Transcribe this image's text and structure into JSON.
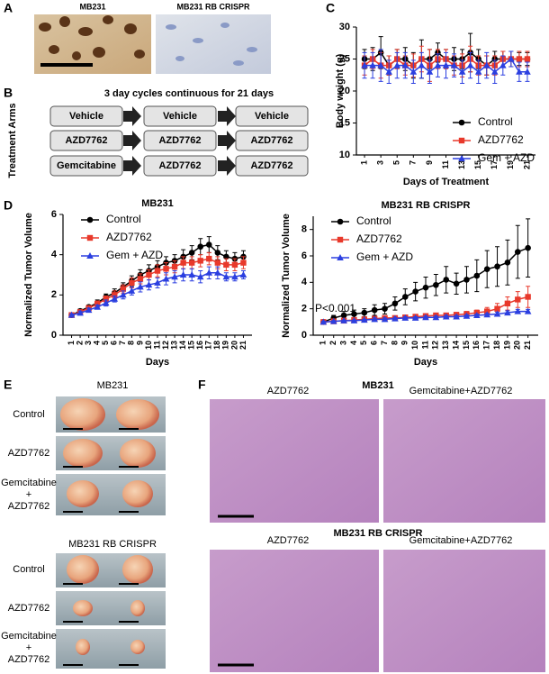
{
  "panel_labels": [
    "A",
    "B",
    "C",
    "D",
    "E",
    "F"
  ],
  "panel_a": {
    "labels": [
      "MB231",
      "MB231 RB CRISPR"
    ]
  },
  "panel_b": {
    "title": "3 day cycles continuous for 21 days",
    "axis_label": "Treatment Arms",
    "rows": [
      [
        "Vehicle",
        "Vehicle",
        "Vehicle"
      ],
      [
        "AZD7762",
        "AZD7762",
        "AZD7762"
      ],
      [
        "Gemcitabine",
        "AZD7762",
        "AZD7762"
      ]
    ]
  },
  "chart_data": [
    {
      "type": "line",
      "xlabel": "Days of Treatment",
      "ylabel": "Body weight (g)",
      "x": [
        1,
        2,
        3,
        4,
        5,
        6,
        7,
        8,
        9,
        10,
        11,
        12,
        13,
        14,
        15,
        16,
        17,
        18,
        19,
        20,
        21
      ],
      "xlim": [
        0,
        22
      ],
      "xticks": [
        1,
        3,
        5,
        7,
        9,
        11,
        13,
        15,
        17,
        19,
        21
      ],
      "ylim": [
        10,
        30
      ],
      "yticks": [
        10,
        15,
        20,
        25,
        30
      ],
      "legend": "lower right",
      "series": [
        {
          "name": "Control",
          "color": "#000000",
          "marker": "circle",
          "values": [
            25,
            25,
            26,
            24,
            25,
            25,
            24,
            25,
            25,
            26,
            25,
            25,
            25,
            26,
            25,
            24,
            25,
            25,
            25,
            25,
            25
          ],
          "errors": [
            1.5,
            1.8,
            2.5,
            1.5,
            1.5,
            1.8,
            2,
            3,
            1.5,
            1.5,
            1.5,
            1.8,
            1.5,
            3,
            1.5,
            1.5,
            1.2,
            1.2,
            1.2,
            1,
            1
          ]
        },
        {
          "name": "AZD7762",
          "color": "#e8392b",
          "marker": "square",
          "values": [
            24,
            25,
            24,
            24,
            25,
            24,
            24,
            25,
            24,
            25,
            25,
            24,
            24,
            25,
            24,
            24,
            24,
            25,
            25,
            25,
            25
          ],
          "errors": [
            1.5,
            1.5,
            2,
            1.5,
            1.5,
            1.5,
            1.8,
            2,
            2.5,
            1.5,
            1.5,
            1.5,
            1.8,
            2,
            1.5,
            1.5,
            1.5,
            1.2,
            1.2,
            1.2,
            1.2
          ]
        },
        {
          "name": "Gem + AZD",
          "color": "#2b3fe0",
          "marker": "triangle",
          "values": [
            24,
            24,
            24,
            23,
            24,
            24,
            23,
            24,
            23,
            24,
            24,
            24,
            23,
            24,
            23,
            24,
            23,
            24,
            25,
            23,
            23
          ],
          "errors": [
            2,
            2,
            2.5,
            1.8,
            2,
            2,
            1.8,
            2,
            1.8,
            1.8,
            2,
            1.8,
            1.8,
            2,
            1.8,
            2,
            1.8,
            1.5,
            1.2,
            1.5,
            1.5
          ]
        }
      ]
    },
    {
      "type": "line",
      "title": "MB231",
      "xlabel": "Days",
      "ylabel": "Normalized Tumor Volume",
      "x": [
        1,
        2,
        3,
        4,
        5,
        6,
        7,
        8,
        9,
        10,
        11,
        12,
        13,
        14,
        15,
        16,
        17,
        18,
        19,
        20,
        21
      ],
      "xlim": [
        0,
        22
      ],
      "xticks": [
        1,
        2,
        3,
        4,
        5,
        6,
        7,
        8,
        9,
        10,
        11,
        12,
        13,
        14,
        15,
        16,
        17,
        18,
        19,
        20,
        21
      ],
      "ylim": [
        0,
        6
      ],
      "yticks": [
        0,
        2,
        4,
        6
      ],
      "legend": "upper left",
      "series": [
        {
          "name": "Control",
          "color": "#000000",
          "marker": "circle",
          "values": [
            1.0,
            1.2,
            1.4,
            1.6,
            1.9,
            2.1,
            2.4,
            2.7,
            3.0,
            3.2,
            3.4,
            3.6,
            3.7,
            3.9,
            4.1,
            4.4,
            4.5,
            4.1,
            3.9,
            3.8,
            3.9
          ],
          "errors": [
            0.05,
            0.1,
            0.1,
            0.15,
            0.15,
            0.2,
            0.2,
            0.25,
            0.25,
            0.3,
            0.3,
            0.3,
            0.3,
            0.35,
            0.35,
            0.4,
            0.4,
            0.35,
            0.3,
            0.3,
            0.3
          ]
        },
        {
          "name": "AZD7762",
          "color": "#e8392b",
          "marker": "square",
          "values": [
            1.0,
            1.15,
            1.35,
            1.55,
            1.8,
            2.0,
            2.3,
            2.6,
            2.8,
            3.0,
            3.2,
            3.3,
            3.4,
            3.6,
            3.6,
            3.7,
            3.8,
            3.6,
            3.5,
            3.5,
            3.6
          ],
          "errors": [
            0.05,
            0.1,
            0.1,
            0.15,
            0.15,
            0.2,
            0.2,
            0.25,
            0.25,
            0.25,
            0.3,
            0.3,
            0.3,
            0.3,
            0.3,
            0.3,
            0.3,
            0.3,
            0.3,
            0.3,
            0.3
          ]
        },
        {
          "name": "Gem + AZD",
          "color": "#2b3fe0",
          "marker": "triangle",
          "values": [
            1.0,
            1.1,
            1.25,
            1.4,
            1.6,
            1.8,
            2.0,
            2.2,
            2.4,
            2.5,
            2.6,
            2.8,
            2.9,
            3.0,
            3.0,
            2.9,
            3.1,
            3.1,
            2.9,
            2.9,
            3.0
          ],
          "errors": [
            0.05,
            0.1,
            0.1,
            0.1,
            0.15,
            0.15,
            0.2,
            0.2,
            0.25,
            0.25,
            0.25,
            0.3,
            0.3,
            0.3,
            0.3,
            0.3,
            0.3,
            0.3,
            0.2,
            0.2,
            0.2
          ]
        }
      ]
    },
    {
      "type": "line",
      "title": "MB231 RB CRISPR",
      "xlabel": "Days",
      "ylabel": "Normalized Tumor Volume",
      "annotation": "P<0.001",
      "x": [
        1,
        2,
        3,
        4,
        5,
        6,
        7,
        8,
        9,
        10,
        11,
        12,
        13,
        14,
        15,
        16,
        17,
        18,
        19,
        20,
        21
      ],
      "xlim": [
        0,
        22
      ],
      "xticks": [
        1,
        2,
        3,
        4,
        5,
        6,
        7,
        8,
        9,
        10,
        11,
        12,
        13,
        14,
        15,
        16,
        17,
        18,
        19,
        20,
        21
      ],
      "ylim": [
        0,
        9
      ],
      "yticks": [
        0,
        2,
        4,
        6,
        8
      ],
      "legend": "upper left",
      "series": [
        {
          "name": "Control",
          "color": "#000000",
          "marker": "circle",
          "values": [
            1.0,
            1.3,
            1.5,
            1.6,
            1.7,
            1.9,
            2.0,
            2.4,
            2.9,
            3.3,
            3.6,
            3.8,
            4.2,
            3.9,
            4.2,
            4.5,
            5.0,
            5.2,
            5.5,
            6.3,
            6.6
          ],
          "errors": [
            0.05,
            0.2,
            0.3,
            0.3,
            0.3,
            0.4,
            0.4,
            0.5,
            0.6,
            0.7,
            0.8,
            0.8,
            1.0,
            0.8,
            1.0,
            1.2,
            1.4,
            1.5,
            1.7,
            2.0,
            2.2
          ]
        },
        {
          "name": "AZD7762",
          "color": "#e8392b",
          "marker": "square",
          "values": [
            1.0,
            1.05,
            1.1,
            1.15,
            1.2,
            1.25,
            1.3,
            1.3,
            1.35,
            1.4,
            1.45,
            1.5,
            1.5,
            1.55,
            1.6,
            1.7,
            1.8,
            2.0,
            2.4,
            2.7,
            2.9
          ],
          "errors": [
            0.05,
            0.05,
            0.1,
            0.1,
            0.1,
            0.1,
            0.1,
            0.1,
            0.1,
            0.1,
            0.15,
            0.15,
            0.15,
            0.15,
            0.2,
            0.2,
            0.3,
            0.4,
            0.5,
            0.6,
            0.8
          ]
        },
        {
          "name": "Gem + AZD",
          "color": "#2b3fe0",
          "marker": "triangle",
          "values": [
            1.0,
            1.05,
            1.1,
            1.1,
            1.15,
            1.2,
            1.2,
            1.25,
            1.3,
            1.3,
            1.35,
            1.35,
            1.4,
            1.4,
            1.45,
            1.5,
            1.55,
            1.6,
            1.7,
            1.8,
            1.8
          ],
          "errors": [
            0.05,
            0.05,
            0.05,
            0.05,
            0.05,
            0.1,
            0.1,
            0.1,
            0.1,
            0.1,
            0.1,
            0.1,
            0.1,
            0.1,
            0.1,
            0.1,
            0.1,
            0.15,
            0.15,
            0.15,
            0.15
          ]
        }
      ]
    }
  ],
  "panel_e": {
    "sections": [
      {
        "title": "MB231",
        "rows": [
          [
            "Control"
          ],
          [
            "AZD7762"
          ],
          [
            "Gemcitabine",
            "+",
            "AZD7762"
          ]
        ]
      },
      {
        "title": "MB231 RB CRISPR",
        "rows": [
          [
            "Control"
          ],
          [
            "AZD7762"
          ],
          [
            "Gemcitabine",
            "+",
            "AZD7762"
          ]
        ]
      }
    ]
  },
  "panel_f": {
    "sections": [
      {
        "title": "MB231",
        "columns": [
          "AZD7762",
          "Gemcitabine+AZD7762"
        ]
      },
      {
        "title": "MB231 RB CRISPR",
        "columns": [
          "AZD7762",
          "Gemcitabine+AZD7762"
        ]
      }
    ]
  }
}
